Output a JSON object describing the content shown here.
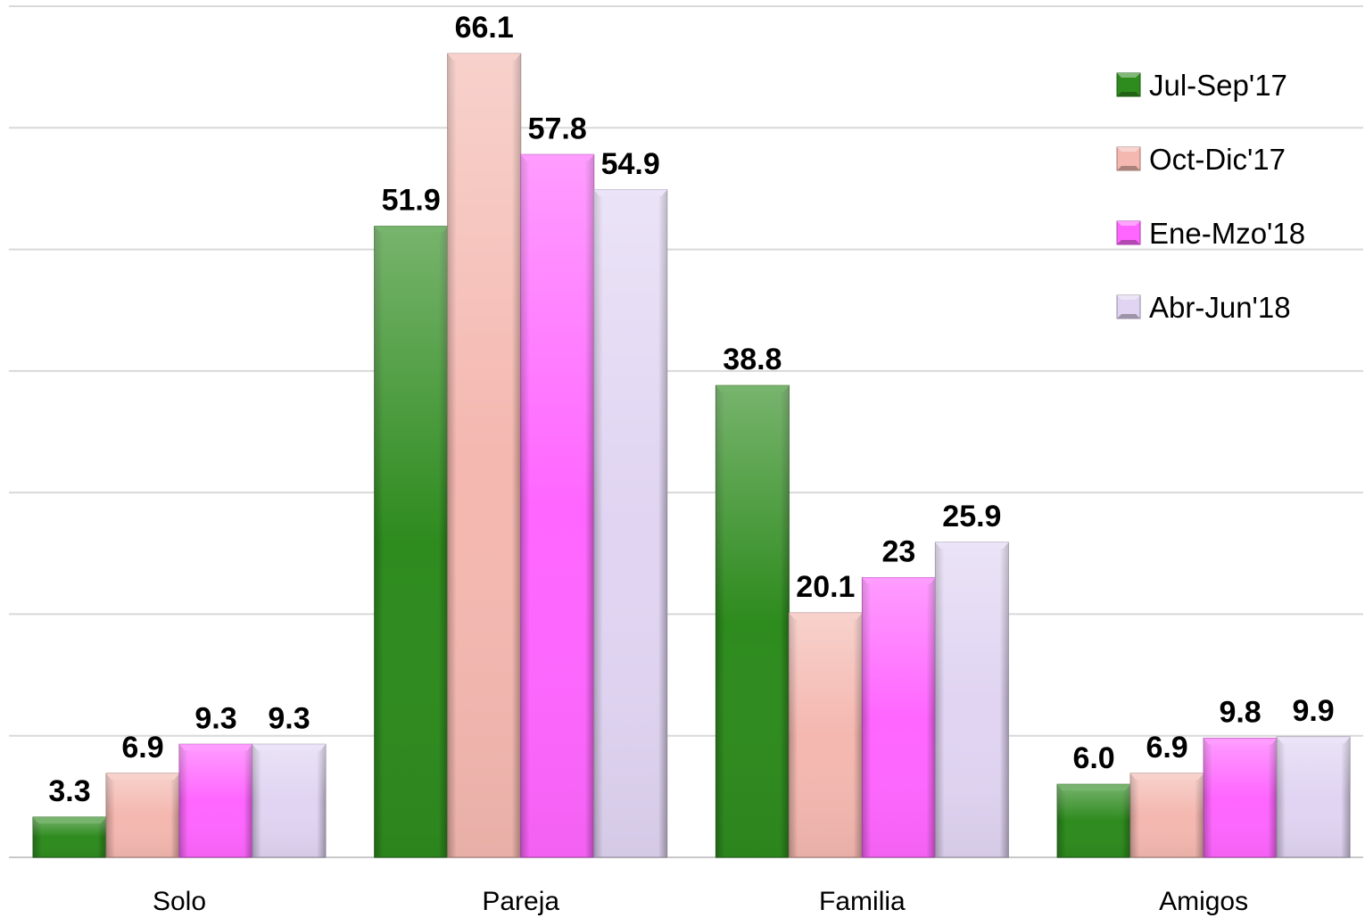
{
  "chart_data": {
    "type": "bar",
    "categories": [
      "Solo",
      "Pareja",
      "Familia",
      "Amigos"
    ],
    "series": [
      {
        "name": "Jul-Sep'17",
        "values": [
          3.3,
          51.9,
          38.8,
          6.0
        ],
        "labels": [
          "3.3",
          "51.9",
          "38.8",
          "6.0"
        ],
        "color": "#2e8b1e"
      },
      {
        "name": "Oct-Dic'17",
        "values": [
          6.9,
          66.1,
          20.1,
          6.9
        ],
        "labels": [
          "6.9",
          "66.1",
          "20.1",
          "6.9"
        ],
        "color": "#f4b8b0"
      },
      {
        "name": "Ene-Mzo'18",
        "values": [
          9.3,
          57.8,
          23,
          9.8
        ],
        "labels": [
          "9.3",
          "57.8",
          "23",
          "9.8"
        ],
        "color": "#ff66ff"
      },
      {
        "name": "Abr-Jun'18",
        "values": [
          9.3,
          54.9,
          25.9,
          9.9
        ],
        "labels": [
          "9.3",
          "54.9",
          "25.9",
          "9.9"
        ],
        "color": "#e0d4f2"
      }
    ],
    "ylim": [
      0,
      70
    ],
    "grid": true,
    "legend": "top-right",
    "title": "",
    "xlabel": "",
    "ylabel": ""
  }
}
